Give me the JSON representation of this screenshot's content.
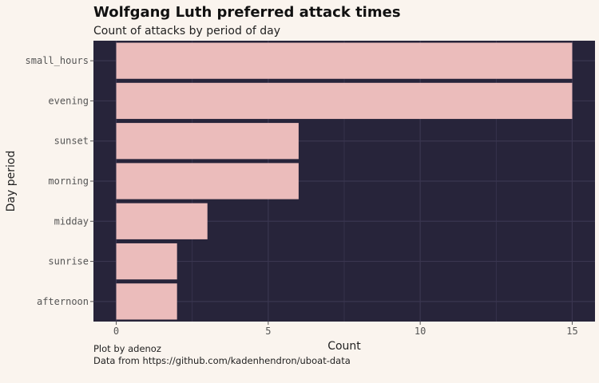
{
  "chart_data": {
    "type": "bar",
    "orientation": "horizontal",
    "title": "Wolfgang Luth preferred attack times",
    "subtitle": "Count of attacks by period of day",
    "xlabel": "Count",
    "ylabel": "Day period",
    "caption_lines": [
      "Plot by adenoz",
      "Data from https://github.com/kadenhendron/uboat-data"
    ],
    "categories": [
      "small_hours",
      "evening",
      "sunset",
      "morning",
      "midday",
      "sunrise",
      "afternoon"
    ],
    "values": [
      15,
      15,
      6,
      6,
      3,
      2,
      2
    ],
    "xlim": [
      -0.75,
      15.75
    ],
    "xticks": [
      0,
      5,
      10,
      15
    ],
    "grid": true,
    "legend": "none",
    "colors": {
      "background": "#faf4ee",
      "panel": "#27243a",
      "bar": "#ebbcbb",
      "grid": "#3a3650"
    }
  }
}
